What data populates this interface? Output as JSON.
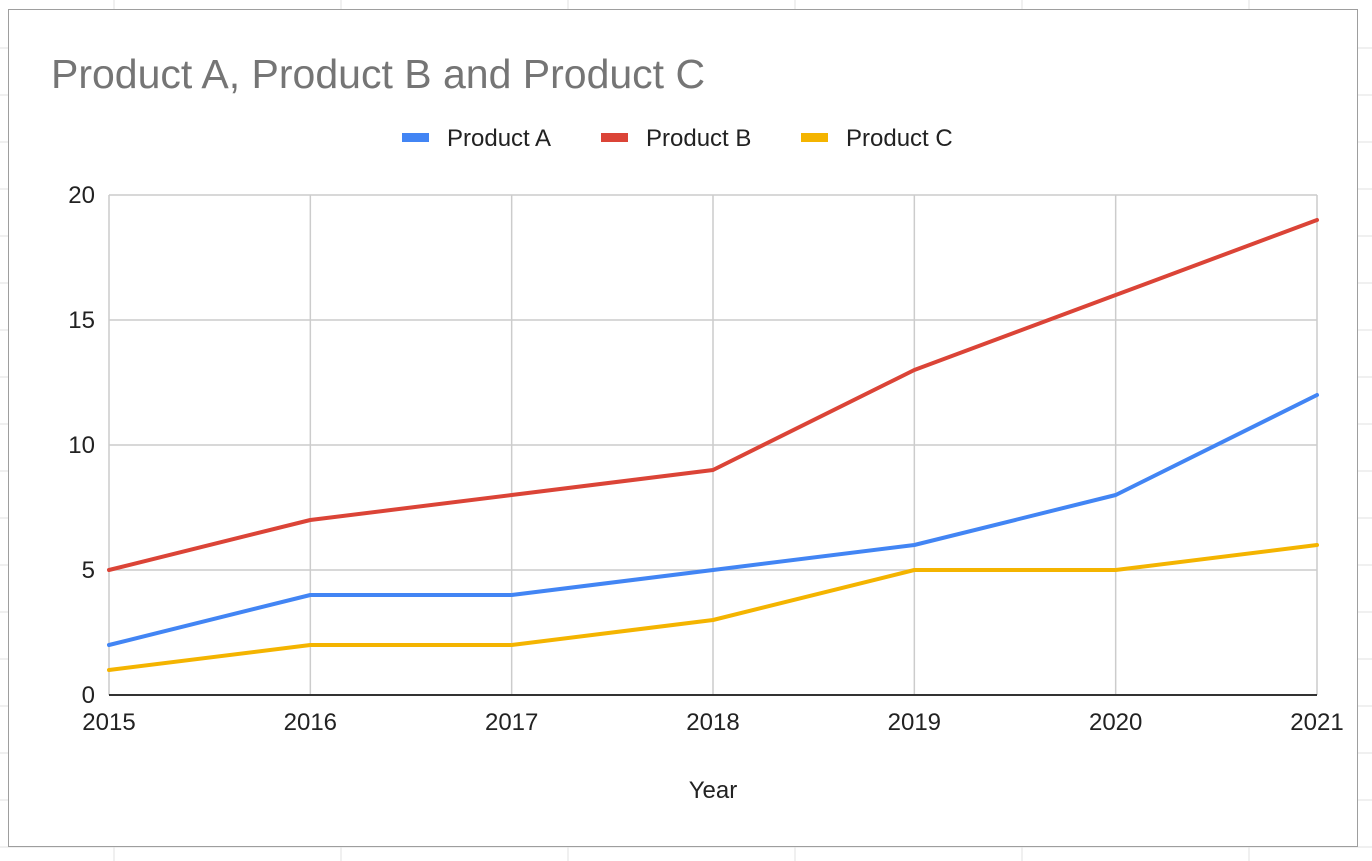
{
  "chart_data": {
    "type": "line",
    "title": "Product A, Product B and Product C",
    "xlabel": "Year",
    "ylabel": "",
    "x": [
      "2015",
      "2016",
      "2017",
      "2018",
      "2019",
      "2020",
      "2021"
    ],
    "ylim": [
      0,
      20
    ],
    "yticks": [
      "0",
      "5",
      "10",
      "15",
      "20"
    ],
    "grid": true,
    "legend_position": "top",
    "series": [
      {
        "name": "Product A",
        "color": "#4285f4",
        "values": [
          2,
          4,
          4,
          5,
          6,
          8,
          12
        ]
      },
      {
        "name": "Product B",
        "color": "#db4437",
        "values": [
          5,
          7,
          8,
          9,
          13,
          16,
          19
        ]
      },
      {
        "name": "Product C",
        "color": "#f4b400",
        "values": [
          1,
          2,
          2,
          3,
          5,
          5,
          6
        ]
      }
    ]
  }
}
